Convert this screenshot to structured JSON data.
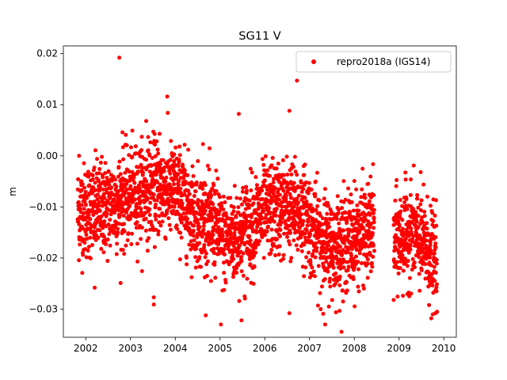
{
  "chart_data": {
    "type": "scatter",
    "title": "SG11 V",
    "xlabel": "",
    "ylabel": "m",
    "xlim": [
      2001.5,
      2010.28
    ],
    "ylim": [
      -0.0355,
      0.0215
    ],
    "xticks": [
      2002,
      2003,
      2004,
      2005,
      2006,
      2007,
      2008,
      2009,
      2010
    ],
    "xtick_labels": [
      "2002",
      "2003",
      "2004",
      "2005",
      "2006",
      "2007",
      "2008",
      "2009",
      "2010"
    ],
    "yticks": [
      -0.03,
      -0.02,
      -0.01,
      0.0,
      0.01,
      0.02
    ],
    "ytick_labels": [
      "−0.03",
      "−0.02",
      "−0.01",
      "0.00",
      "0.01",
      "0.02"
    ],
    "grid": false,
    "legend_position": "top-right",
    "series": [
      {
        "name": "repro2018a (IGS14)",
        "color": "#ff0000",
        "marker": "circle",
        "segments": [
          {
            "x_start": 2001.82,
            "x_end": 2005.0,
            "profile": [
              [
                2001.82,
                -0.011
              ],
              [
                2002.5,
                -0.01
              ],
              [
                2003.0,
                -0.008
              ],
              [
                2003.5,
                -0.006
              ],
              [
                2004.0,
                -0.007
              ],
              [
                2004.5,
                -0.012
              ],
              [
                2005.0,
                -0.014
              ]
            ]
          },
          {
            "x_start": 2005.0,
            "x_end": 2007.0,
            "profile": [
              [
                2005.0,
                -0.017
              ],
              [
                2005.5,
                -0.015
              ],
              [
                2006.0,
                -0.011
              ],
              [
                2006.5,
                -0.01
              ],
              [
                2007.0,
                -0.012
              ]
            ]
          },
          {
            "x_start": 2007.0,
            "x_end": 2008.45,
            "profile": [
              [
                2007.0,
                -0.014
              ],
              [
                2007.5,
                -0.018
              ],
              [
                2008.0,
                -0.016
              ],
              [
                2008.45,
                -0.014
              ]
            ]
          },
          {
            "x_start": 2008.88,
            "x_end": 2009.85,
            "profile": [
              [
                2008.88,
                -0.017
              ],
              [
                2009.3,
                -0.015
              ],
              [
                2009.6,
                -0.018
              ],
              [
                2009.85,
                -0.021
              ]
            ]
          }
        ],
        "outliers": [
          [
            2002.75,
            0.0192
          ],
          [
            2003.82,
            0.0116
          ],
          [
            2006.72,
            0.0147
          ],
          [
            2006.55,
            0.0088
          ],
          [
            2005.42,
            0.0082
          ],
          [
            2003.35,
            0.0068
          ],
          [
            2001.85,
            0.0
          ],
          [
            2002.82,
            0.0046
          ],
          [
            2003.65,
            0.0043
          ],
          [
            2004.62,
            0.0023
          ],
          [
            2005.02,
            -0.033
          ],
          [
            2005.48,
            -0.0322
          ],
          [
            2007.35,
            -0.033
          ],
          [
            2006.55,
            -0.0308
          ],
          [
            2009.72,
            -0.0318
          ],
          [
            2003.52,
            -0.0277
          ],
          [
            2003.52,
            -0.0291
          ],
          [
            2002.2,
            -0.0258
          ],
          [
            2007.25,
            -0.03
          ],
          [
            2008.88,
            -0.0282
          ],
          [
            2009.85,
            -0.0305
          ],
          [
            2005.55,
            -0.0275
          ],
          [
            2007.75,
            -0.0285
          ],
          [
            2004.8,
            -0.0245
          ]
        ]
      }
    ]
  }
}
